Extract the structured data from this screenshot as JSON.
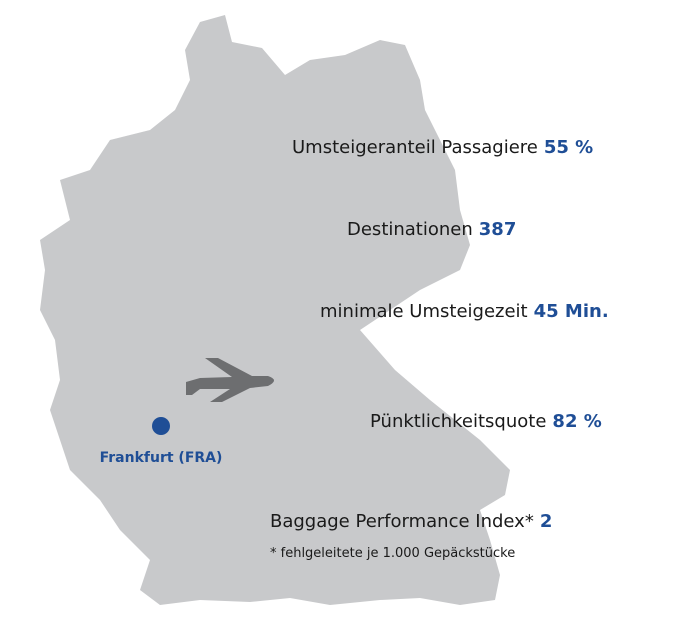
{
  "marker": {
    "label": "Frankfurt (FRA)"
  },
  "stats": [
    {
      "label": "Umsteigeranteil Passagiere",
      "value": "55 %"
    },
    {
      "label": "Destinationen",
      "value": "387"
    },
    {
      "label": "minimale Umsteigezeit",
      "value": "45 Min."
    },
    {
      "label": "Pünktlichkeitsquote",
      "value": "82 %"
    },
    {
      "label": "Baggage Performance Index*",
      "value": "2"
    }
  ],
  "footnote": "* fehlgeleitete je 1.000 Gepäckstücke"
}
